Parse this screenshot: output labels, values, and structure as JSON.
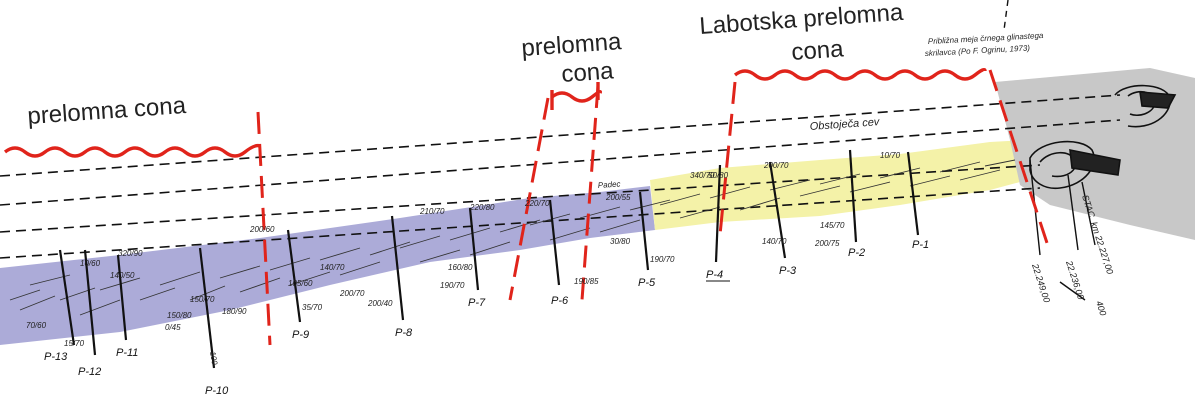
{
  "zones": {
    "left_label": "prelomna cona",
    "middle_label_line1": "prelomna",
    "middle_label_line2": "cona",
    "right_label_line1": "Labotska prelomna",
    "right_label_line2": "cona"
  },
  "note": {
    "line1": "Približna   meja   črnega   glinastega",
    "line2": "skrilavca   (Po F. Ogrinu, 1973)"
  },
  "pipe_label": "Obstoječa cev",
  "padec_label": "Padec",
  "profiles": [
    "P-13",
    "P-12",
    "P-11",
    "P-10",
    "P-9",
    "P-8",
    "P-7",
    "P-6",
    "P-5",
    "P-4",
    "P-3",
    "P-2",
    "P-1"
  ],
  "measurements": [
    "70/60",
    "15/70",
    "140/50",
    "320/90",
    "10/60",
    "150/80",
    "150/70",
    "0/45",
    "180/90",
    "200/60",
    "105/60",
    "140/70",
    "35/70",
    "200/70",
    "200/40",
    "210/70",
    "220/80",
    "160/80",
    "190/70",
    "220/70",
    "200/55",
    "190/85",
    "30/80",
    "190/70",
    "340/70",
    "50/80",
    "140/70",
    "200/70",
    "145/70",
    "200/75",
    "10/70",
    "100"
  ],
  "stations": [
    "22.249,00",
    "22.236,00",
    "STAC. km  22.227,00",
    "400"
  ],
  "colors": {
    "fault_red": "#e0241b",
    "purple_zone": "#a8a6d6",
    "yellow_zone": "#f4f2a8",
    "grey_zone": "#c8c8c8",
    "line": "#111111"
  }
}
